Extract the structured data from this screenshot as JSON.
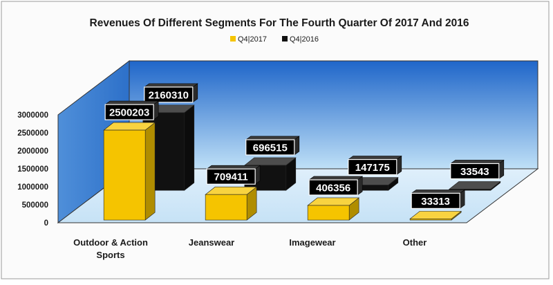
{
  "chart_data": {
    "type": "bar",
    "title": "Revenues Of Different Segments For The Fourth Quarter Of 2017 And 2016",
    "categories": [
      "Outdoor & Action Sports",
      "Jeanswear",
      "Imagewear",
      "Other"
    ],
    "series": [
      {
        "name": "Q4|2017",
        "values": [
          2500203,
          709411,
          406356,
          33313
        ],
        "color": "#f5c400"
      },
      {
        "name": "Q4|2016",
        "values": [
          2160310,
          696515,
          147175,
          33543
        ],
        "color": "#111111"
      }
    ],
    "y_ticks": [
      "0",
      "500000",
      "1000000",
      "1500000",
      "2000000",
      "2500000",
      "3000000"
    ],
    "ylim": [
      0,
      3000000
    ],
    "xlabel": "",
    "ylabel": "",
    "legend_position": "top-center",
    "grid": false,
    "background_colors": {
      "top": "#1f66c9",
      "bottom": "#bfe0f7"
    },
    "label_style": {
      "fill": "#000000",
      "text": "#ffffff"
    }
  }
}
